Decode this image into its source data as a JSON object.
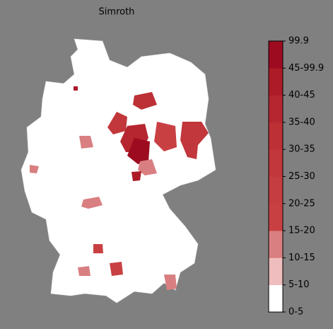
{
  "map": {
    "title": "Simroth",
    "colorbar": {
      "labels": [
        "0-5",
        "5-10",
        "10-15",
        "15-20",
        "20-25",
        "25-30",
        "30-35",
        "35-40",
        "40-45",
        "45-99.9",
        "99.9"
      ],
      "colors": [
        "#ffffff",
        "#efbdbd",
        "#d97f81",
        "#c94043",
        "#c53d40",
        "#c1373b",
        "#bd3036",
        "#b62630",
        "#ad1a28",
        "#9c0b1f"
      ]
    }
  }
}
